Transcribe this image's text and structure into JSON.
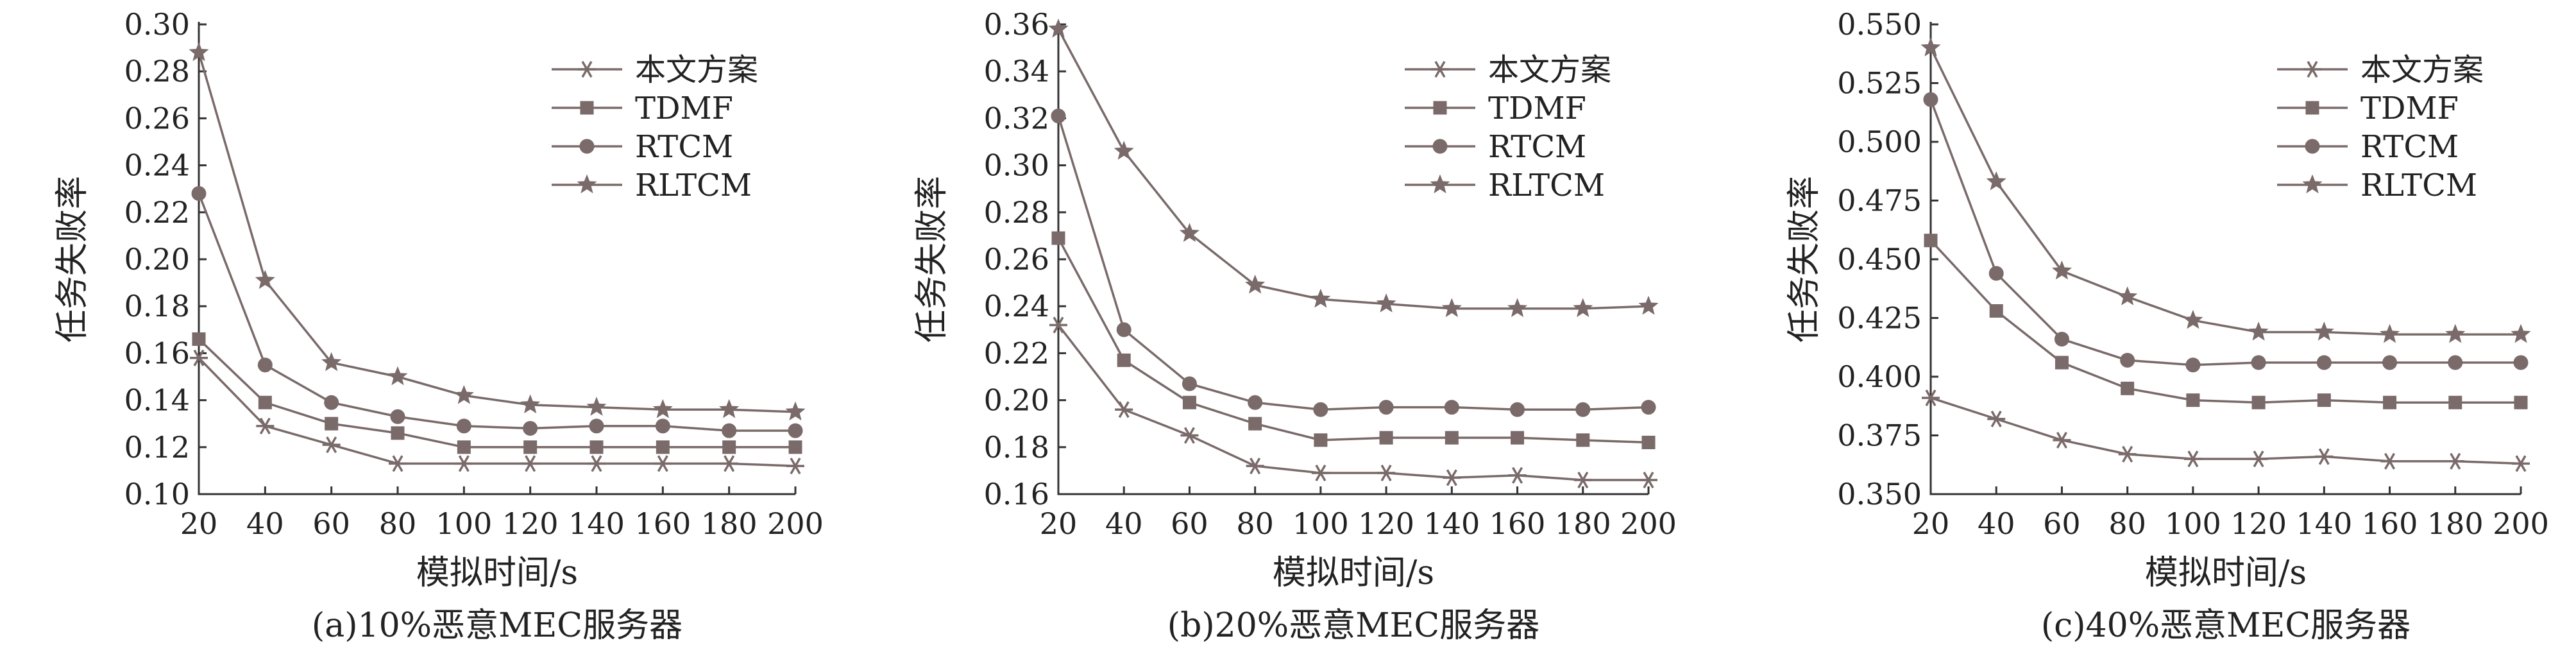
{
  "chart_data": [
    {
      "type": "line",
      "caption": "(a)10%恶意MEC服务器",
      "xlabel": "模拟时间/s",
      "ylabel": "任务失败率",
      "x": [
        20,
        40,
        60,
        80,
        100,
        120,
        140,
        160,
        180,
        200
      ],
      "xlim": [
        20,
        200
      ],
      "ylim": [
        0.1,
        0.3
      ],
      "yticks": [
        "0.10",
        "0.12",
        "0.14",
        "0.16",
        "0.18",
        "0.20",
        "0.22",
        "0.24",
        "0.26",
        "0.28",
        "0.30"
      ],
      "legend_position": "top-right",
      "series": [
        {
          "name": "本文方案",
          "marker": "asterisk",
          "values": [
            0.158,
            0.129,
            0.121,
            0.113,
            0.113,
            0.113,
            0.113,
            0.113,
            0.113,
            0.112
          ]
        },
        {
          "name": "TDMF",
          "marker": "square",
          "values": [
            0.166,
            0.139,
            0.13,
            0.126,
            0.12,
            0.12,
            0.12,
            0.12,
            0.12,
            0.12
          ]
        },
        {
          "name": "RTCM",
          "marker": "circle",
          "values": [
            0.228,
            0.155,
            0.139,
            0.133,
            0.129,
            0.128,
            0.129,
            0.129,
            0.127,
            0.127
          ]
        },
        {
          "name": "RLTCM",
          "marker": "star",
          "values": [
            0.288,
            0.191,
            0.156,
            0.15,
            0.142,
            0.138,
            0.137,
            0.136,
            0.136,
            0.135
          ]
        }
      ]
    },
    {
      "type": "line",
      "caption": "(b)20%恶意MEC服务器",
      "xlabel": "模拟时间/s",
      "ylabel": "任务失败率",
      "x": [
        20,
        40,
        60,
        80,
        100,
        120,
        140,
        160,
        180,
        200
      ],
      "xlim": [
        20,
        200
      ],
      "ylim": [
        0.16,
        0.36
      ],
      "yticks": [
        "0.16",
        "0.18",
        "0.20",
        "0.22",
        "0.24",
        "0.26",
        "0.28",
        "0.30",
        "0.32",
        "0.34",
        "0.36"
      ],
      "legend_position": "top-right",
      "series": [
        {
          "name": "本文方案",
          "marker": "asterisk",
          "values": [
            0.232,
            0.196,
            0.185,
            0.172,
            0.169,
            0.169,
            0.167,
            0.168,
            0.166,
            0.166
          ]
        },
        {
          "name": "TDMF",
          "marker": "square",
          "values": [
            0.269,
            0.217,
            0.199,
            0.19,
            0.183,
            0.184,
            0.184,
            0.184,
            0.183,
            0.182
          ]
        },
        {
          "name": "RTCM",
          "marker": "circle",
          "values": [
            0.321,
            0.23,
            0.207,
            0.199,
            0.196,
            0.197,
            0.197,
            0.196,
            0.196,
            0.197
          ]
        },
        {
          "name": "RLTCM",
          "marker": "star",
          "values": [
            0.358,
            0.306,
            0.271,
            0.249,
            0.243,
            0.241,
            0.239,
            0.239,
            0.239,
            0.24
          ]
        }
      ]
    },
    {
      "type": "line",
      "caption": "(c)40%恶意MEC服务器",
      "xlabel": "模拟时间/s",
      "ylabel": "任务失败率",
      "x": [
        20,
        40,
        60,
        80,
        100,
        120,
        140,
        160,
        180,
        200
      ],
      "xlim": [
        20,
        200
      ],
      "ylim": [
        0.35,
        0.55
      ],
      "yticks": [
        "0.350",
        "0.375",
        "0.400",
        "0.425",
        "0.450",
        "0.475",
        "0.500",
        "0.525",
        "0.550"
      ],
      "legend_position": "top-right",
      "series": [
        {
          "name": "本文方案",
          "marker": "asterisk",
          "values": [
            0.391,
            0.382,
            0.373,
            0.367,
            0.365,
            0.365,
            0.366,
            0.364,
            0.364,
            0.363
          ]
        },
        {
          "name": "TDMF",
          "marker": "square",
          "values": [
            0.458,
            0.428,
            0.406,
            0.395,
            0.39,
            0.389,
            0.39,
            0.389,
            0.389,
            0.389
          ]
        },
        {
          "name": "RTCM",
          "marker": "circle",
          "values": [
            0.518,
            0.444,
            0.416,
            0.407,
            0.405,
            0.406,
            0.406,
            0.406,
            0.406,
            0.406
          ]
        },
        {
          "name": "RLTCM",
          "marker": "star",
          "values": [
            0.54,
            0.483,
            0.445,
            0.434,
            0.424,
            0.419,
            0.419,
            0.418,
            0.418,
            0.418
          ]
        }
      ]
    }
  ]
}
